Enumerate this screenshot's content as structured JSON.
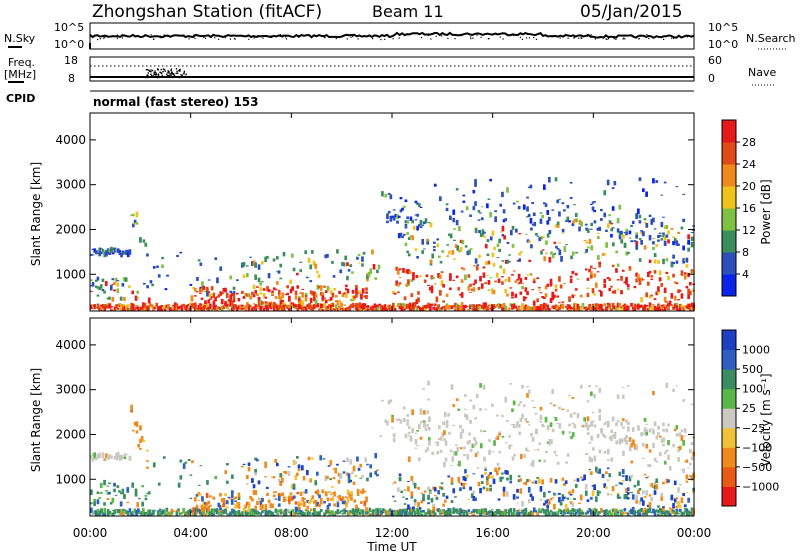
{
  "header": {
    "station": "Zhongshan Station (fitACF)",
    "beam": "Beam 11",
    "date": "05/Jan/2015"
  },
  "top_panels": {
    "nsky_label": "N.Sky",
    "nsearch_label": "N.Search",
    "freq_label_line1": "Freq.",
    "freq_label_line2": "[MHz]",
    "nave_label": "Nave",
    "cpid_label": "CPID",
    "cpid_text": "normal (fast stereo) 153",
    "noise_ticks": [
      "10^5",
      "10^0"
    ],
    "freq_ticks": [
      "18",
      "8"
    ],
    "nave_ticks": [
      "60",
      "0"
    ]
  },
  "chart_data": [
    {
      "type": "heatmap",
      "name": "power",
      "ylabel": "Slant Range [km]",
      "yticks": [
        1000,
        2000,
        3000,
        4000
      ],
      "ylim": [
        180,
        4600
      ],
      "colorbar_label": "Power [dB]",
      "colorbar_ticks": [
        "4",
        "8",
        "12",
        "16",
        "20",
        "24",
        "28"
      ],
      "colorbar_colors": [
        "#0a23e8",
        "#2c4fba",
        "#3c8d5c",
        "#7fc142",
        "#f0c21c",
        "#ef8a1c",
        "#e04a16",
        "#e61a1a"
      ]
    },
    {
      "type": "heatmap",
      "name": "velocity",
      "ylabel": "Slant Range [km]",
      "yticks": [
        1000,
        2000,
        3000,
        4000
      ],
      "ylim": [
        180,
        4600
      ],
      "colorbar_label": "Velocity [m s⁻¹]",
      "colorbar_ticks": [
        "1000",
        "500",
        "100",
        "25",
        "−25",
        "−100",
        "−500",
        "−1000"
      ],
      "colorbar_colors": [
        "#1c3fc4",
        "#2c5fbf",
        "#3b8c63",
        "#5ab848",
        "#c9c9c2",
        "#f0c238",
        "#ef8a1c",
        "#e95a16",
        "#e61a1a"
      ]
    }
  ],
  "time_axis": {
    "label": "Time UT",
    "ticks": [
      "00:00",
      "04:00",
      "08:00",
      "12:00",
      "16:00",
      "20:00",
      "00:00"
    ],
    "range_hours": [
      0,
      24
    ]
  }
}
